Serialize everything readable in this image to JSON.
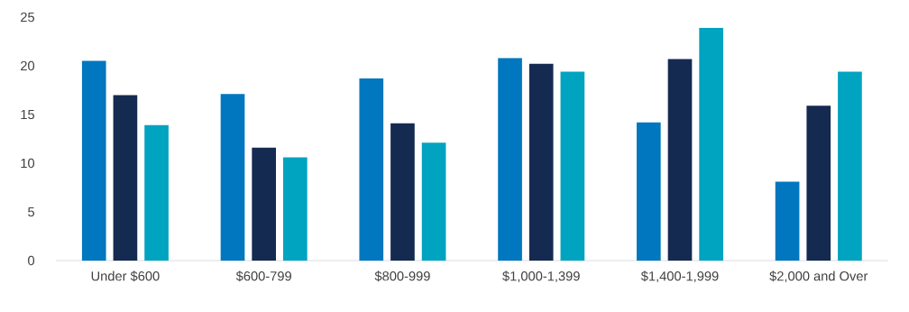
{
  "chart_data": {
    "type": "bar",
    "categories": [
      "Under $600",
      "$600-799",
      "$800-999",
      "$1,000-1,399",
      "$1,400-1,999",
      "$2,000 and Over"
    ],
    "series": [
      {
        "color": "#0077be",
        "values": [
          20.5,
          17.1,
          18.7,
          20.8,
          14.2,
          8.1
        ]
      },
      {
        "color": "#152a51",
        "values": [
          17.0,
          11.6,
          14.1,
          20.2,
          20.7,
          15.9
        ]
      },
      {
        "color": "#00a3c0",
        "values": [
          13.9,
          10.6,
          12.1,
          19.4,
          23.9,
          19.4
        ]
      }
    ],
    "ylim": [
      0,
      25
    ],
    "yticks": [
      0,
      5,
      10,
      15,
      20,
      25
    ],
    "grid": false
  }
}
